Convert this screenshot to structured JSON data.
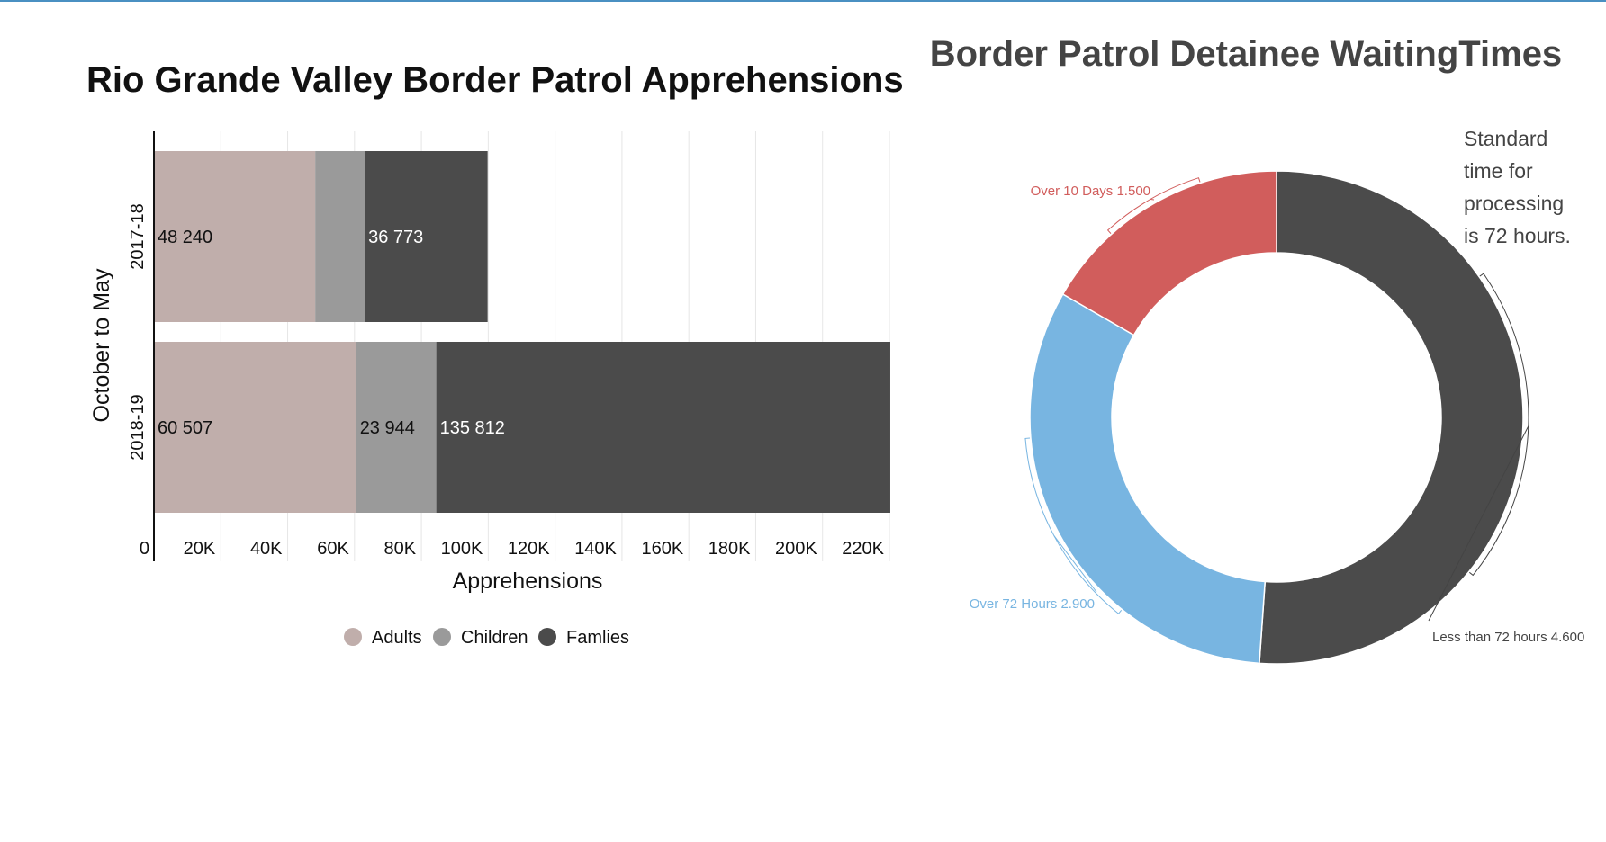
{
  "colors": {
    "adults": "#c0aeab",
    "children": "#9a9a9a",
    "families": "#4b4b4b",
    "over10": "#d15d5c",
    "over72": "#78b5e1",
    "less72": "#4b4b4b",
    "grid": "#e6e6e6",
    "titleRight": "#444444",
    "topline": "#4a90c2"
  },
  "chart_data": [
    {
      "type": "bar",
      "orientation": "horizontal",
      "stacked": true,
      "title": "Rio Grande Valley Border Patrol Apprehensions",
      "xlabel": "Apprehensions",
      "ylabel": "October to May",
      "categories": [
        "2017-18",
        "2018-19"
      ],
      "series": [
        {
          "name": "Adults",
          "values": [
            48240,
            60507
          ],
          "labels": [
            "48 240",
            "60 507"
          ],
          "color_key": "adults"
        },
        {
          "name": "Children",
          "values": [
            14800,
            23944
          ],
          "labels": [
            "",
            "23 944"
          ],
          "color_key": "children"
        },
        {
          "name": "Famlies",
          "values": [
            36773,
            135812
          ],
          "labels": [
            "36 773",
            "135 812"
          ],
          "color_key": "families"
        }
      ],
      "xlim": [
        0,
        220000
      ],
      "xticks": [
        0,
        20000,
        40000,
        60000,
        80000,
        100000,
        120000,
        140000,
        160000,
        180000,
        200000,
        220000
      ],
      "xtick_labels": [
        "0",
        "20K",
        "40K",
        "60K",
        "80K",
        "100K",
        "120K",
        "140K",
        "160K",
        "180K",
        "200K",
        "220K"
      ],
      "grid": true,
      "legend": "bottom"
    },
    {
      "type": "pie",
      "donut": true,
      "title": "Border Patrol Detainee WaitingTimes",
      "annotation": "Standard time for processing is 72 hours.",
      "slices": [
        {
          "label": "Less than 72 hours",
          "value": 4600,
          "value_label": "4.600",
          "color_key": "less72"
        },
        {
          "label": "Over 72 Hours",
          "value": 2900,
          "value_label": "2.900",
          "color_key": "over72"
        },
        {
          "label": "Over 10 Days",
          "value": 1500,
          "value_label": "1.500",
          "color_key": "over10"
        }
      ]
    }
  ]
}
